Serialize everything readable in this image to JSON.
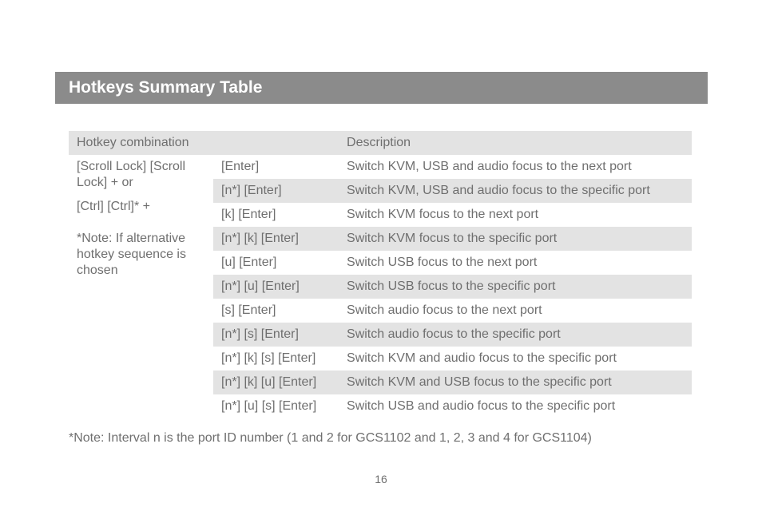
{
  "title": "Hotkeys Summary Table",
  "headers": {
    "col1": "Hotkey combination",
    "col2": "Description"
  },
  "left": {
    "line1": "[Scroll Lock] [Scroll Lock] + or",
    "line2": "[Ctrl] [Ctrl]* +",
    "note": "*Note: If alternative hotkey sequence is chosen"
  },
  "rows": [
    {
      "keys": "[Enter]",
      "desc": "Switch KVM, USB and audio focus to the next port"
    },
    {
      "keys": "[n*] [Enter]",
      "desc": "Switch KVM, USB and audio focus to the specific port"
    },
    {
      "keys": "[k] [Enter]",
      "desc": "Switch KVM focus to the next port"
    },
    {
      "keys": "[n*] [k] [Enter]",
      "desc": "Switch KVM focus to the specific port"
    },
    {
      "keys": "[u] [Enter]",
      "desc": "Switch USB focus to the next port"
    },
    {
      "keys": "[n*] [u] [Enter]",
      "desc": "Switch USB focus to the specific port"
    },
    {
      "keys": "[s] [Enter]",
      "desc": "Switch audio focus to the next port"
    },
    {
      "keys": "[n*] [s] [Enter]",
      "desc": "Switch audio focus to the specific port"
    },
    {
      "keys": "[n*] [k] [s] [Enter]",
      "desc": "Switch KVM and audio focus to the specific port"
    },
    {
      "keys": "[n*] [k] [u] [Enter]",
      "desc": "Switch KVM and USB focus to the specific port"
    },
    {
      "keys": "[n*] [u] [s] [Enter]",
      "desc": "Switch USB and audio focus to the specific port"
    }
  ],
  "footnote": "*Note: Interval n is the port ID number (1 and 2 for GCS1102 and 1, 2, 3 and 4 for GCS1104)",
  "page": "16",
  "colors": {
    "titlebar_bg": "#8b8b8b",
    "row_alt_bg": "#e3e3e3",
    "text": "#6f6f6f",
    "title_text": "#ffffff"
  }
}
